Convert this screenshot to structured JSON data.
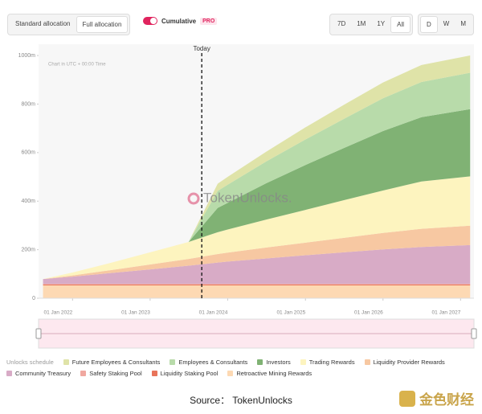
{
  "controls": {
    "allocation": [
      "Standard allocation",
      "Full allocation"
    ],
    "cumulative": "Cumulative",
    "pro": "PRO",
    "ranges": [
      "7D",
      "1M",
      "1Y",
      "All"
    ],
    "intervals": [
      "D",
      "W",
      "M"
    ]
  },
  "chart_data": {
    "type": "area",
    "stacked": true,
    "note": "Chart in UTC + 00:00 Time",
    "watermark": "TokenUnlocks.",
    "legend_title": "Unlocks schedule",
    "x": [
      "2021-08-15",
      "2022-01-01",
      "2022-07-01",
      "2023-01-01",
      "2023-07-01",
      "2023-11-15",
      "2024-01-01",
      "2024-07-01",
      "2025-01-01",
      "2025-07-01",
      "2026-01-01",
      "2026-07-01",
      "2027-02-15"
    ],
    "series": [
      {
        "name": "Future Employees & Consultants",
        "color": "#dfe3a8",
        "values": [
          0,
          0,
          0,
          0,
          0,
          30,
          32,
          40,
          50,
          58,
          65,
          70,
          71
        ]
      },
      {
        "name": "Employees & Consultants",
        "color": "#b8dbaa",
        "values": [
          0,
          0,
          0,
          0,
          0,
          70,
          75,
          90,
          105,
          120,
          135,
          145,
          150
        ]
      },
      {
        "name": "Investors",
        "color": "#80b274",
        "values": [
          0,
          0,
          0,
          0,
          0,
          100,
          110,
          150,
          185,
          215,
          245,
          265,
          277
        ]
      },
      {
        "name": "Trading Rewards",
        "color": "#fdf4bf",
        "values": [
          0,
          12,
          30,
          50,
          70,
          90,
          95,
          115,
          135,
          155,
          175,
          195,
          203
        ]
      },
      {
        "name": "Liquidity Provider Rewards",
        "color": "#f7c8a2",
        "values": [
          0,
          5,
          12,
          20,
          28,
          35,
          37,
          45,
          52,
          60,
          68,
          75,
          80
        ]
      },
      {
        "name": "Community Treasury",
        "color": "#d8abc6",
        "values": [
          20,
          30,
          45,
          60,
          75,
          88,
          92,
          105,
          118,
          130,
          142,
          152,
          160
        ]
      },
      {
        "name": "Safety Staking Pool",
        "color": "#f0a8a0",
        "values": [
          2,
          2,
          2,
          2,
          2,
          2,
          2,
          2,
          2,
          2,
          2,
          2,
          2
        ]
      },
      {
        "name": "Liquidity Staking Pool",
        "color": "#e8745a",
        "values": [
          4,
          4,
          4,
          4,
          4,
          4,
          4,
          4,
          4,
          4,
          4,
          4,
          4
        ]
      },
      {
        "name": "Retroactive Mining Rewards",
        "color": "#fdd9b3",
        "values": [
          53,
          53,
          53,
          53,
          53,
          53,
          53,
          53,
          53,
          53,
          53,
          53,
          53
        ]
      }
    ],
    "xlim": [
      "2021-07-25",
      "2027-03-05"
    ],
    "xticks": [
      {
        "value": "2022-01-01",
        "label": "01 Jan 2022"
      },
      {
        "value": "2023-01-01",
        "label": "01 Jan 2023"
      },
      {
        "value": "2024-01-01",
        "label": "01 Jan 2024"
      },
      {
        "value": "2025-01-01",
        "label": "01 Jan 2025"
      },
      {
        "value": "2026-01-01",
        "label": "01 Jan 2026"
      },
      {
        "value": "2027-01-01",
        "label": "01 Jan 2027"
      }
    ],
    "ylim": [
      0,
      1030
    ],
    "yticks": [
      0,
      {
        "value": 200,
        "label": "200m"
      },
      {
        "value": 400,
        "label": "400m"
      },
      {
        "value": 600,
        "label": "600m"
      },
      {
        "value": 800,
        "label": "800m"
      },
      {
        "value": 1000,
        "label": "1000m"
      }
    ],
    "annotations": [
      {
        "text": "Today",
        "x": "2023-09-01"
      }
    ]
  },
  "footer": {
    "source": "Source： TokenUnlocks",
    "brand": "金色财经"
  }
}
